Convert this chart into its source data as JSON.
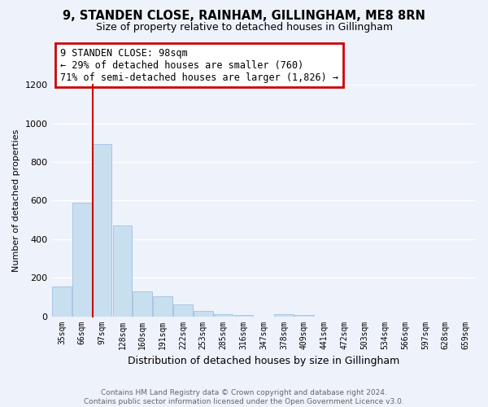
{
  "title": "9, STANDEN CLOSE, RAINHAM, GILLINGHAM, ME8 8RN",
  "subtitle": "Size of property relative to detached houses in Gillingham",
  "xlabel": "Distribution of detached houses by size in Gillingham",
  "ylabel": "Number of detached properties",
  "bar_color": "#c8dff0",
  "background_color": "#eef2fb",
  "categories": [
    "35sqm",
    "66sqm",
    "97sqm",
    "128sqm",
    "160sqm",
    "191sqm",
    "222sqm",
    "253sqm",
    "285sqm",
    "316sqm",
    "347sqm",
    "378sqm",
    "409sqm",
    "441sqm",
    "472sqm",
    "503sqm",
    "534sqm",
    "566sqm",
    "597sqm",
    "628sqm",
    "659sqm"
  ],
  "values": [
    155,
    590,
    895,
    470,
    130,
    105,
    62,
    28,
    12,
    8,
    0,
    10,
    8,
    0,
    0,
    0,
    0,
    0,
    0,
    0,
    0
  ],
  "ylim": [
    0,
    1200
  ],
  "yticks": [
    0,
    200,
    400,
    600,
    800,
    1000,
    1200
  ],
  "property_label": "9 STANDEN CLOSE: 98sqm",
  "pct_smaller": 29,
  "n_smaller": 760,
  "pct_larger_semi": 71,
  "n_larger_semi": 1826,
  "marker_bin_index": 2,
  "annotation_box_color": "#ffffff",
  "annotation_box_edge": "#cc0000",
  "marker_line_color": "#cc0000",
  "footer_line1": "Contains HM Land Registry data © Crown copyright and database right 2024.",
  "footer_line2": "Contains public sector information licensed under the Open Government Licence v3.0."
}
